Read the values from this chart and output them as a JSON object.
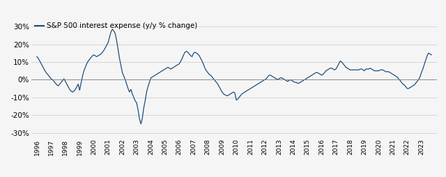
{
  "title": "S&P 500 interest expense (y/y % change)",
  "line_color": "#1f4e79",
  "background_color": "#f5f5f5",
  "grid_color": "#c8c8c8",
  "zero_line_color": "#888888",
  "ylim": [
    -33,
    33
  ],
  "yticks": [
    -30,
    -20,
    -10,
    0,
    10,
    20,
    30
  ],
  "x_tick_years": [
    1996,
    1997,
    1998,
    1999,
    2000,
    2001,
    2002,
    2003,
    2004,
    2005,
    2006,
    2007,
    2008,
    2009,
    2010,
    2011,
    2012,
    2013,
    2014,
    2015,
    2016,
    2017,
    2018,
    2019,
    2020,
    2021,
    2022,
    2023
  ],
  "data": [
    1996.0,
    13.0,
    1996.1,
    12.0,
    1996.2,
    10.5,
    1996.3,
    9.0,
    1996.4,
    7.5,
    1996.5,
    6.0,
    1996.6,
    4.5,
    1996.7,
    3.5,
    1996.8,
    2.5,
    1996.9,
    1.5,
    1997.0,
    0.5,
    1997.1,
    0.0,
    1997.2,
    -1.0,
    1997.3,
    -2.0,
    1997.4,
    -3.0,
    1997.5,
    -3.5,
    1997.6,
    -2.5,
    1997.7,
    -1.5,
    1997.8,
    -0.5,
    1997.9,
    0.5,
    1998.0,
    -1.0,
    1998.1,
    -2.5,
    1998.2,
    -4.0,
    1998.3,
    -5.5,
    1998.4,
    -6.5,
    1998.5,
    -7.0,
    1998.6,
    -6.5,
    1998.7,
    -5.5,
    1998.8,
    -4.0,
    1998.9,
    -2.5,
    1999.0,
    -6.0,
    1999.1,
    -2.0,
    1999.2,
    2.0,
    1999.3,
    5.0,
    1999.4,
    7.0,
    1999.5,
    9.0,
    1999.6,
    10.5,
    1999.7,
    11.5,
    1999.8,
    12.5,
    1999.9,
    13.5,
    2000.0,
    14.0,
    2000.1,
    13.5,
    2000.2,
    13.0,
    2000.3,
    13.5,
    2000.4,
    14.0,
    2000.5,
    14.5,
    2000.6,
    15.5,
    2000.7,
    16.5,
    2000.8,
    18.0,
    2000.9,
    19.5,
    2001.0,
    21.0,
    2001.1,
    24.0,
    2001.2,
    27.0,
    2001.3,
    28.5,
    2001.4,
    27.5,
    2001.5,
    26.0,
    2001.6,
    22.0,
    2001.7,
    17.0,
    2001.8,
    12.0,
    2001.9,
    8.0,
    2002.0,
    4.0,
    2002.1,
    2.0,
    2002.2,
    0.0,
    2002.3,
    -2.5,
    2002.4,
    -5.0,
    2002.5,
    -7.0,
    2002.6,
    -5.5,
    2002.7,
    -8.0,
    2002.8,
    -10.0,
    2002.9,
    -12.0,
    2003.0,
    -13.0,
    2003.1,
    -17.0,
    2003.2,
    -22.0,
    2003.3,
    -25.0,
    2003.4,
    -22.0,
    2003.5,
    -16.0,
    2003.6,
    -12.0,
    2003.7,
    -7.0,
    2003.8,
    -4.0,
    2003.9,
    -1.5,
    2004.0,
    1.0,
    2004.1,
    1.5,
    2004.2,
    2.0,
    2004.3,
    2.5,
    2004.4,
    3.0,
    2004.5,
    3.5,
    2004.6,
    4.0,
    2004.7,
    4.5,
    2004.8,
    5.0,
    2004.9,
    5.5,
    2005.0,
    6.0,
    2005.1,
    6.5,
    2005.2,
    7.0,
    2005.3,
    6.5,
    2005.4,
    6.0,
    2005.5,
    6.5,
    2005.6,
    7.0,
    2005.7,
    7.5,
    2005.8,
    8.0,
    2005.9,
    8.5,
    2006.0,
    9.0,
    2006.1,
    10.5,
    2006.2,
    12.0,
    2006.3,
    14.0,
    2006.4,
    15.5,
    2006.5,
    16.0,
    2006.6,
    15.5,
    2006.7,
    14.5,
    2006.8,
    13.5,
    2006.9,
    13.0,
    2007.0,
    15.0,
    2007.1,
    15.5,
    2007.2,
    15.0,
    2007.3,
    14.5,
    2007.4,
    13.5,
    2007.5,
    12.0,
    2007.6,
    10.5,
    2007.7,
    8.5,
    2007.8,
    6.5,
    2007.9,
    5.0,
    2008.0,
    4.0,
    2008.1,
    3.0,
    2008.2,
    2.5,
    2008.3,
    1.5,
    2008.4,
    0.5,
    2008.5,
    -0.5,
    2008.6,
    -1.5,
    2008.7,
    -2.5,
    2008.8,
    -4.0,
    2008.9,
    -5.5,
    2009.0,
    -7.0,
    2009.1,
    -8.0,
    2009.2,
    -8.5,
    2009.3,
    -9.0,
    2009.4,
    -9.0,
    2009.5,
    -8.5,
    2009.6,
    -8.0,
    2009.7,
    -7.5,
    2009.8,
    -7.0,
    2009.9,
    -7.5,
    2010.0,
    -11.5,
    2010.1,
    -11.0,
    2010.2,
    -10.0,
    2010.3,
    -9.0,
    2010.4,
    -8.0,
    2010.5,
    -7.5,
    2010.6,
    -7.0,
    2010.7,
    -6.5,
    2010.8,
    -6.0,
    2010.9,
    -5.5,
    2011.0,
    -5.0,
    2011.1,
    -4.5,
    2011.2,
    -4.0,
    2011.3,
    -3.5,
    2011.4,
    -3.0,
    2011.5,
    -2.5,
    2011.6,
    -2.0,
    2011.7,
    -1.5,
    2011.8,
    -1.0,
    2011.9,
    -0.5,
    2012.0,
    0.0,
    2012.1,
    0.5,
    2012.2,
    1.5,
    2012.3,
    2.5,
    2012.4,
    2.5,
    2012.5,
    2.0,
    2012.6,
    1.5,
    2012.7,
    1.0,
    2012.8,
    0.5,
    2012.9,
    0.0,
    2013.0,
    0.5,
    2013.1,
    1.0,
    2013.2,
    1.0,
    2013.3,
    0.5,
    2013.4,
    0.0,
    2013.5,
    -0.5,
    2013.6,
    -1.0,
    2013.7,
    -0.5,
    2013.8,
    0.0,
    2013.9,
    -0.5,
    2014.0,
    -1.0,
    2014.1,
    -1.5,
    2014.2,
    -1.5,
    2014.3,
    -2.0,
    2014.4,
    -2.0,
    2014.5,
    -1.5,
    2014.6,
    -1.0,
    2014.7,
    -0.5,
    2014.8,
    0.0,
    2014.9,
    0.5,
    2015.0,
    1.0,
    2015.1,
    1.5,
    2015.2,
    2.0,
    2015.3,
    2.5,
    2015.4,
    3.0,
    2015.5,
    3.5,
    2015.6,
    4.0,
    2015.7,
    4.0,
    2015.8,
    3.5,
    2015.9,
    3.0,
    2016.0,
    2.5,
    2016.1,
    3.0,
    2016.2,
    4.0,
    2016.3,
    5.0,
    2016.4,
    5.5,
    2016.5,
    6.0,
    2016.6,
    6.5,
    2016.7,
    6.5,
    2016.8,
    6.0,
    2016.9,
    5.5,
    2017.0,
    6.0,
    2017.1,
    7.5,
    2017.2,
    9.0,
    2017.3,
    10.5,
    2017.4,
    10.0,
    2017.5,
    9.0,
    2017.6,
    8.0,
    2017.7,
    7.0,
    2017.8,
    6.5,
    2017.9,
    6.0,
    2018.0,
    5.5,
    2018.1,
    5.5,
    2018.2,
    5.5,
    2018.3,
    5.5,
    2018.4,
    5.5,
    2018.5,
    5.5,
    2018.6,
    5.5,
    2018.7,
    6.0,
    2018.8,
    6.0,
    2018.9,
    5.5,
    2019.0,
    5.0,
    2019.1,
    6.0,
    2019.2,
    6.0,
    2019.3,
    6.0,
    2019.4,
    6.5,
    2019.5,
    6.0,
    2019.6,
    5.5,
    2019.7,
    5.0,
    2019.8,
    5.0,
    2019.9,
    5.0,
    2020.0,
    5.0,
    2020.1,
    5.5,
    2020.2,
    5.5,
    2020.3,
    5.5,
    2020.4,
    5.0,
    2020.5,
    4.5,
    2020.6,
    4.5,
    2020.7,
    4.5,
    2020.8,
    4.0,
    2020.9,
    3.5,
    2021.0,
    3.0,
    2021.1,
    2.5,
    2021.2,
    2.0,
    2021.3,
    1.5,
    2021.4,
    0.5,
    2021.5,
    -0.5,
    2021.6,
    -1.5,
    2021.7,
    -2.5,
    2021.8,
    -3.0,
    2021.9,
    -4.0,
    2022.0,
    -5.0,
    2022.1,
    -5.0,
    2022.2,
    -4.5,
    2022.3,
    -4.0,
    2022.4,
    -3.5,
    2022.5,
    -3.0,
    2022.6,
    -2.0,
    2022.7,
    -1.0,
    2022.8,
    0.0,
    2022.9,
    1.5,
    2023.0,
    4.0,
    2023.1,
    6.0,
    2023.2,
    8.5,
    2023.3,
    11.0,
    2023.4,
    13.5,
    2023.5,
    15.0,
    2023.6,
    14.5,
    2023.7,
    14.0
  ]
}
